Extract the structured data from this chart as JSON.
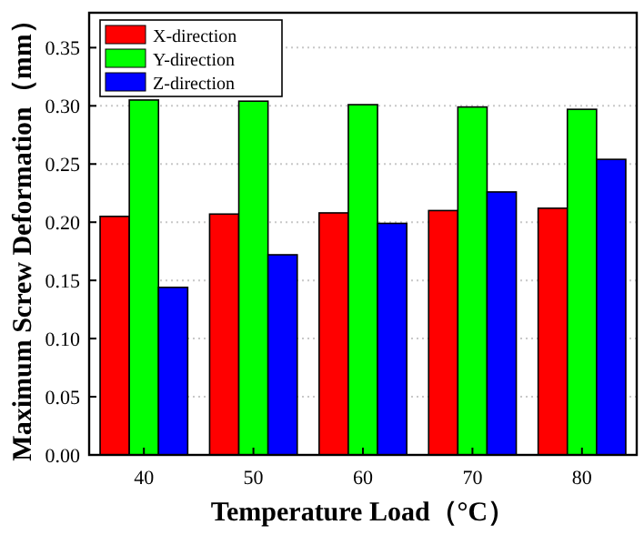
{
  "chart_data": {
    "type": "bar",
    "xlabel": "Temperature Load（°C）",
    "ylabel": "Maximum Screw Deformation（mm）",
    "categories": [
      "40",
      "50",
      "60",
      "70",
      "80"
    ],
    "series": [
      {
        "name": "X-direction",
        "color": "#ff0000",
        "values": [
          0.205,
          0.207,
          0.208,
          0.21,
          0.212
        ]
      },
      {
        "name": "Y-direction",
        "color": "#00ff00",
        "values": [
          0.305,
          0.304,
          0.301,
          0.299,
          0.297
        ]
      },
      {
        "name": "Z-direction",
        "color": "#0000ff",
        "values": [
          0.144,
          0.172,
          0.199,
          0.226,
          0.254
        ]
      }
    ],
    "ylim": [
      0,
      0.38
    ],
    "yticks": [
      {
        "value": 0,
        "label": "0.00"
      },
      {
        "value": 0.05,
        "label": "0.05"
      },
      {
        "value": 0.1,
        "label": "0.10"
      },
      {
        "value": 0.15,
        "label": "0.15"
      },
      {
        "value": 0.2,
        "label": "0.20"
      },
      {
        "value": 0.25,
        "label": "0.25"
      },
      {
        "value": 0.3,
        "label": "0.30"
      },
      {
        "value": 0.35,
        "label": "0.35"
      }
    ],
    "grid": "y",
    "legend": "top left"
  }
}
